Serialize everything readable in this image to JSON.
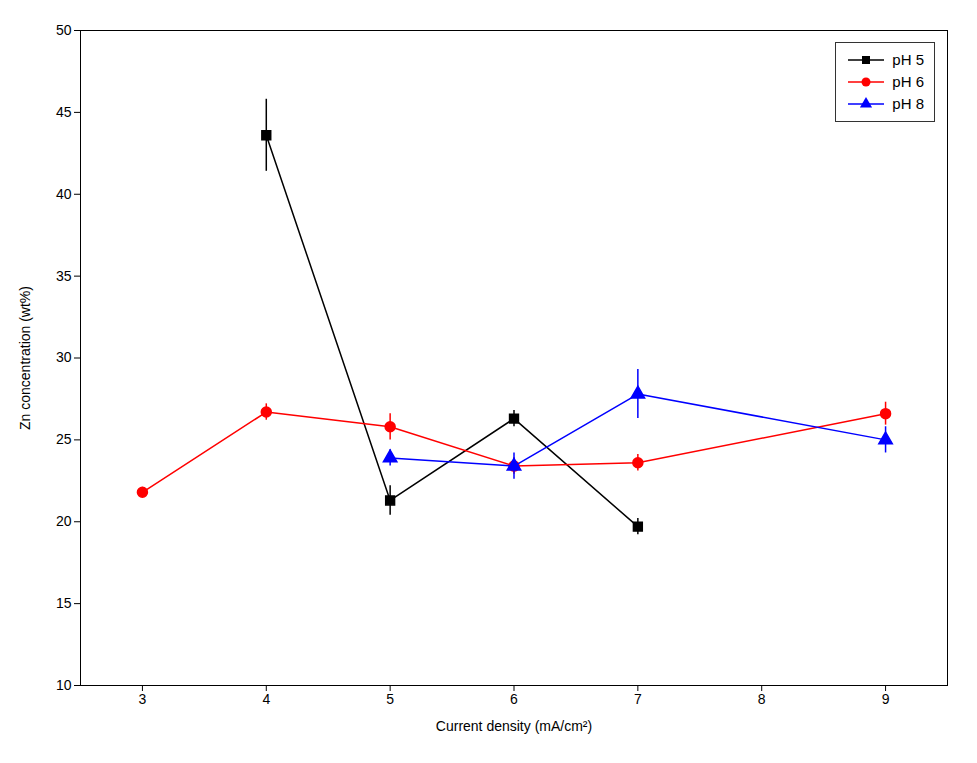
{
  "chart_data": {
    "type": "line",
    "xlabel": "Current density (mA/cm²)",
    "ylabel": "Zn concentration (wt%)",
    "xlim": [
      2.5,
      9.5
    ],
    "ylim": [
      10,
      50
    ],
    "xticks": [
      3,
      4,
      5,
      6,
      7,
      8,
      9
    ],
    "yticks": [
      10,
      15,
      20,
      25,
      30,
      35,
      40,
      45,
      50
    ],
    "grid": false,
    "legend": "upper right",
    "series": [
      {
        "name": "pH 5",
        "color": "#000000",
        "marker": "square",
        "x": [
          4,
          5,
          6,
          7
        ],
        "values": [
          43.6,
          21.3,
          26.3,
          19.7
        ],
        "yerr": [
          2.2,
          0.9,
          0.5,
          0.5
        ]
      },
      {
        "name": "pH 6",
        "color": "#ff0000",
        "marker": "circle",
        "x": [
          3,
          4,
          5,
          6,
          7,
          9
        ],
        "values": [
          21.8,
          26.7,
          25.8,
          23.4,
          23.6,
          26.6
        ],
        "yerr": [
          0.3,
          0.5,
          0.8,
          0.5,
          0.5,
          0.7
        ]
      },
      {
        "name": "pH 8",
        "color": "#0000ff",
        "marker": "triangle",
        "x": [
          5,
          6,
          7,
          9
        ],
        "values": [
          23.9,
          23.4,
          27.8,
          25.0
        ],
        "yerr": [
          0.5,
          0.8,
          1.5,
          0.8
        ]
      }
    ]
  }
}
